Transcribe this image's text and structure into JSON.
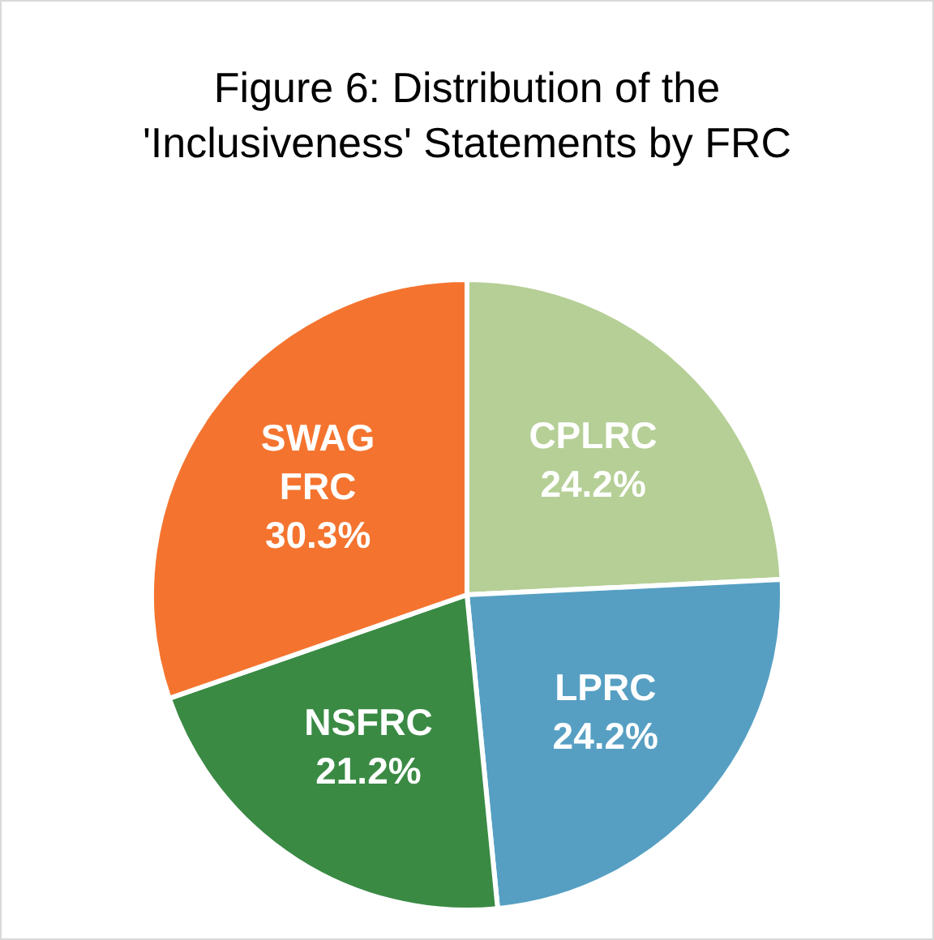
{
  "chart_data": {
    "type": "pie",
    "title": "Figure 6: Distribution of the 'Inclusiveness' Statements by FRC",
    "categories": [
      "CPLRC",
      "LPRC",
      "NSFRC",
      "SWAG FRC"
    ],
    "values": [
      24.2,
      24.2,
      21.2,
      30.3
    ],
    "colors": [
      "#b5cf96",
      "#569fc3",
      "#3a8a44",
      "#f4742f"
    ],
    "value_labels": [
      "24.2%",
      "24.2%",
      "21.2%",
      "30.3%"
    ],
    "legend": false
  }
}
